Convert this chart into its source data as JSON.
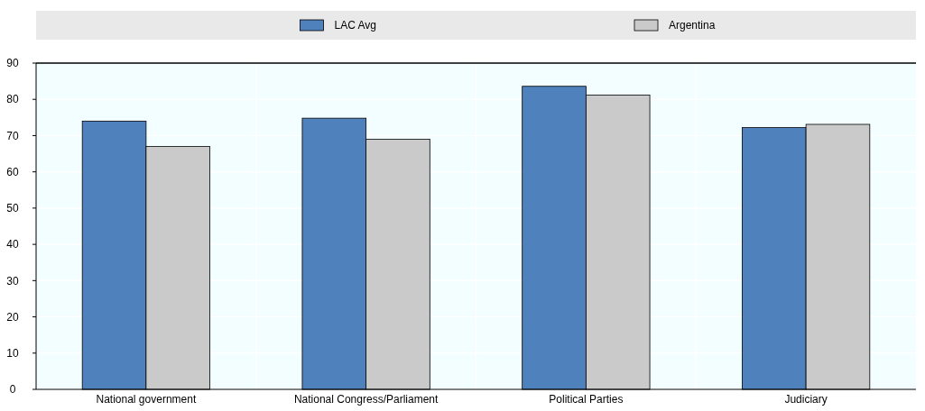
{
  "chart_data": {
    "type": "bar",
    "categories": [
      "National government",
      "National Congress/Parliament",
      "Political Parties",
      "Judiciary"
    ],
    "series": [
      {
        "name": "LAC Avg",
        "color": "#4f81bd",
        "values": [
          74,
          74.8,
          83.6,
          72.2
        ]
      },
      {
        "name": "Argentina",
        "color": "#cacaca",
        "values": [
          67,
          69,
          81.2,
          73.1
        ]
      }
    ],
    "ylim": [
      0,
      90
    ],
    "yticks": [
      0,
      10,
      20,
      30,
      40,
      50,
      60,
      70,
      80,
      90
    ],
    "grid": true,
    "legend": "top"
  }
}
